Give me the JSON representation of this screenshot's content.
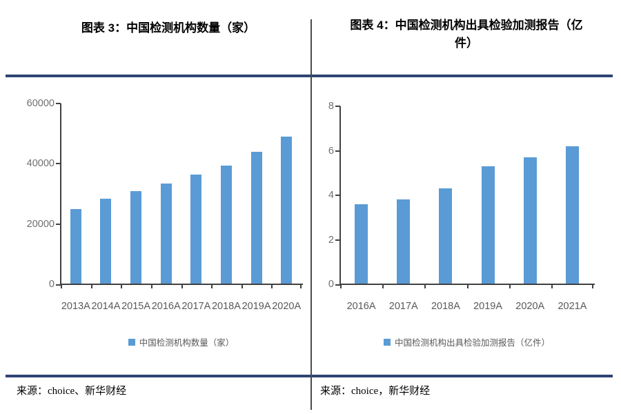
{
  "panels": [
    {
      "title": "图表 3：中国检测机构数量（家）",
      "legend_label": "中国检测机构数量（家）",
      "source": "来源：choice、新华财经"
    },
    {
      "title": "图表 4：中国检测机构出具检验加测报告（亿件）",
      "legend_label": "中国检测机构出具检验加测报告（亿件）",
      "source": "来源：choice，新华财经"
    }
  ],
  "colors": {
    "bar": "#5B9BD5",
    "rule": "#2E4472",
    "axis": "#404040",
    "ytick_label": "#6F6F6F",
    "xtick_label": "#595959"
  },
  "chart_data": [
    {
      "type": "bar",
      "title": "图表 3：中国检测机构数量（家）",
      "categories": [
        "2013A",
        "2014A",
        "2015A",
        "2016A",
        "2017A",
        "2018A",
        "2019A",
        "2020A"
      ],
      "values": [
        25000,
        28500,
        31000,
        33500,
        36500,
        39500,
        44000,
        49000
      ],
      "xlabel": "",
      "ylabel": "",
      "ylim": [
        0,
        60000
      ],
      "yticks": [
        0,
        20000,
        40000,
        60000
      ],
      "grid": false,
      "legend": [
        "中国检测机构数量（家）"
      ],
      "legend_position": "bottom",
      "bar_color": "#5B9BD5"
    },
    {
      "type": "bar",
      "title": "图表 4：中国检测机构出具检验加测报告（亿件）",
      "categories": [
        "2016A",
        "2017A",
        "2018A",
        "2019A",
        "2020A",
        "2021A"
      ],
      "values": [
        3.6,
        3.8,
        4.3,
        5.3,
        5.7,
        6.2
      ],
      "xlabel": "",
      "ylabel": "",
      "ylim": [
        0,
        8
      ],
      "yticks": [
        0,
        2,
        4,
        6,
        8
      ],
      "grid": false,
      "legend": [
        "中国检测机构出具检验加测报告（亿件）"
      ],
      "legend_position": "bottom",
      "bar_color": "#5B9BD5"
    }
  ]
}
